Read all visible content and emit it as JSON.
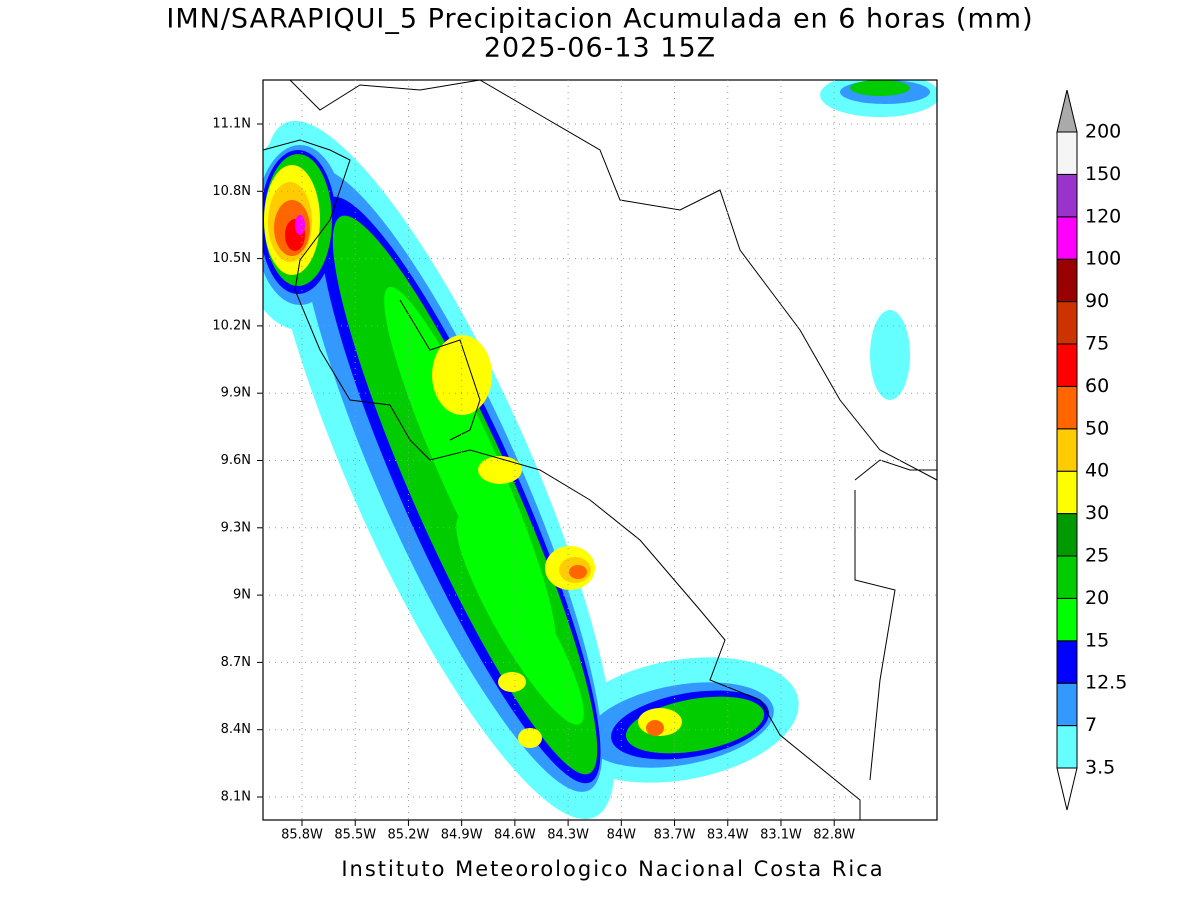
{
  "title": "IMN/SARAPIQUI_5 Precipitacion Acumulada en 6 horas (mm)",
  "subtitle": "2025-06-13 15Z",
  "footer": "Instituto Meteorologico Nacional Costa Rica",
  "map": {
    "lat_ticks": [
      {
        "value": 11.1,
        "label": "11.1N"
      },
      {
        "value": 10.8,
        "label": "10.8N"
      },
      {
        "value": 10.5,
        "label": "10.5N"
      },
      {
        "value": 10.2,
        "label": "10.2N"
      },
      {
        "value": 9.9,
        "label": "9.9N"
      },
      {
        "value": 9.6,
        "label": "9.6N"
      },
      {
        "value": 9.3,
        "label": "9.3N"
      },
      {
        "value": 9,
        "label": "9N"
      },
      {
        "value": 8.7,
        "label": "8.7N"
      },
      {
        "value": 8.4,
        "label": "8.4N"
      },
      {
        "value": 8.1,
        "label": "8.1N"
      }
    ],
    "lon_ticks": [
      {
        "value": -85.8,
        "label": "85.8W"
      },
      {
        "value": -85.5,
        "label": "85.5W"
      },
      {
        "value": -85.2,
        "label": "85.2W"
      },
      {
        "value": -84.9,
        "label": "84.9W"
      },
      {
        "value": -84.6,
        "label": "84.6W"
      },
      {
        "value": -84.3,
        "label": "84.3W"
      },
      {
        "value": -84,
        "label": "84W"
      },
      {
        "value": -83.7,
        "label": "83.7W"
      },
      {
        "value": -83.4,
        "label": "83.4W"
      },
      {
        "value": -83.1,
        "label": "83.1W"
      },
      {
        "value": -82.8,
        "label": "82.8W"
      }
    ],
    "grid": true
  },
  "colorbar": {
    "levels": [
      3.5,
      7,
      12.5,
      15,
      20,
      25,
      30,
      40,
      50,
      60,
      75,
      90,
      100,
      120,
      150,
      200
    ],
    "colors": [
      "#66ffff",
      "#3399ff",
      "#0000ff",
      "#00ff00",
      "#00cc00",
      "#009900",
      "#ffff00",
      "#ffcc00",
      "#ff6600",
      "#ff0000",
      "#cc3300",
      "#990000",
      "#ff00ff",
      "#9933cc",
      "#f5f5f5"
    ],
    "under_color": "#ffffff",
    "over_color": "#aaaaaa"
  }
}
